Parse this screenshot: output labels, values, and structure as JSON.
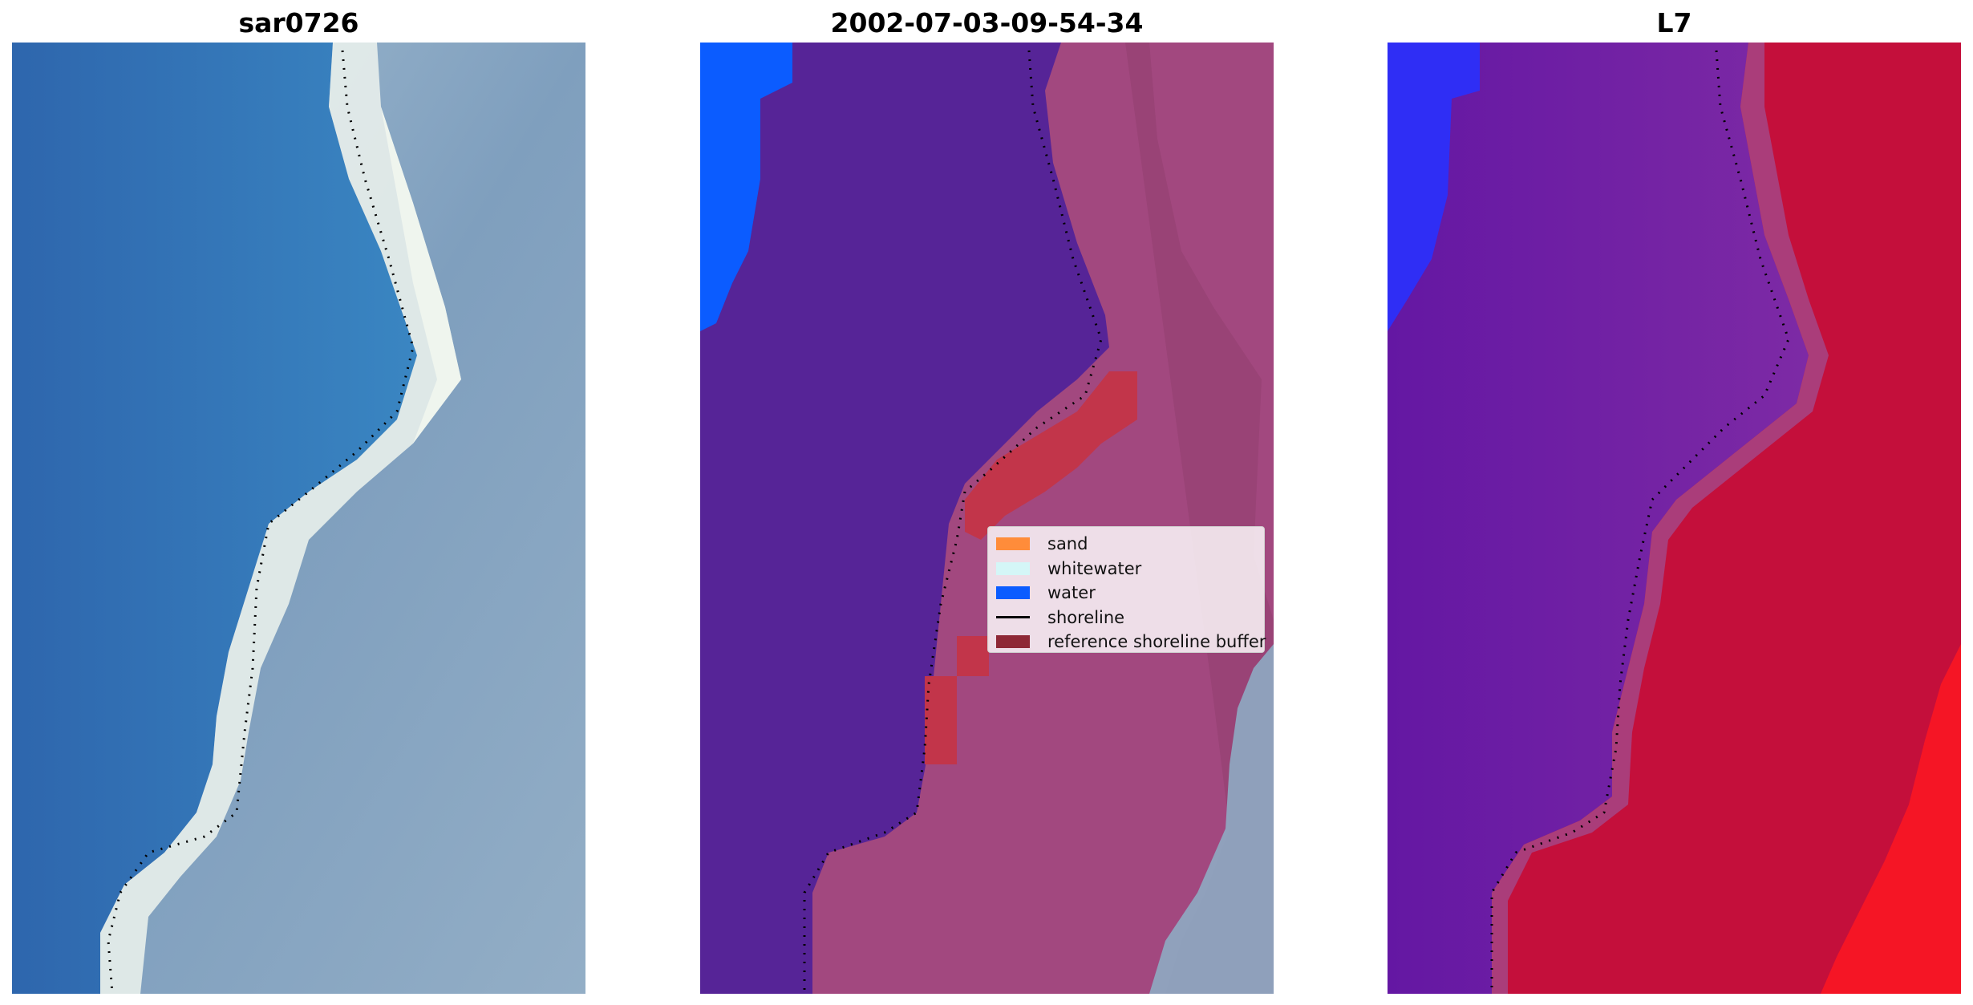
{
  "panels": [
    {
      "title": "sar0726",
      "icon": "satellite-rgb-image-icon"
    },
    {
      "title": "2002-07-03-09-54-34",
      "icon": "classified-image-icon"
    },
    {
      "title": "L7",
      "icon": "water-index-image-icon"
    }
  ],
  "legend": {
    "items": [
      {
        "label": "sand",
        "color": "#ff8c3a",
        "kind": "patch"
      },
      {
        "label": "whitewater",
        "color": "#d4f6f7",
        "kind": "patch"
      },
      {
        "label": "water",
        "color": "#0b5cff",
        "kind": "patch"
      },
      {
        "label": "shoreline",
        "color": "#000000",
        "kind": "line"
      },
      {
        "label": "reference shoreline buffer",
        "color": "#8e2836",
        "kind": "patch"
      }
    ]
  },
  "colors": {
    "deep_water": "#2f72b5",
    "whitewater": "#e8f0ee",
    "land_blue_grey": "#8ea9c4",
    "class_water_purple": "#562497",
    "class_land_magenta": "#a2487f",
    "index_purple": "#6a1aa1",
    "index_red": "#c40f3b"
  }
}
